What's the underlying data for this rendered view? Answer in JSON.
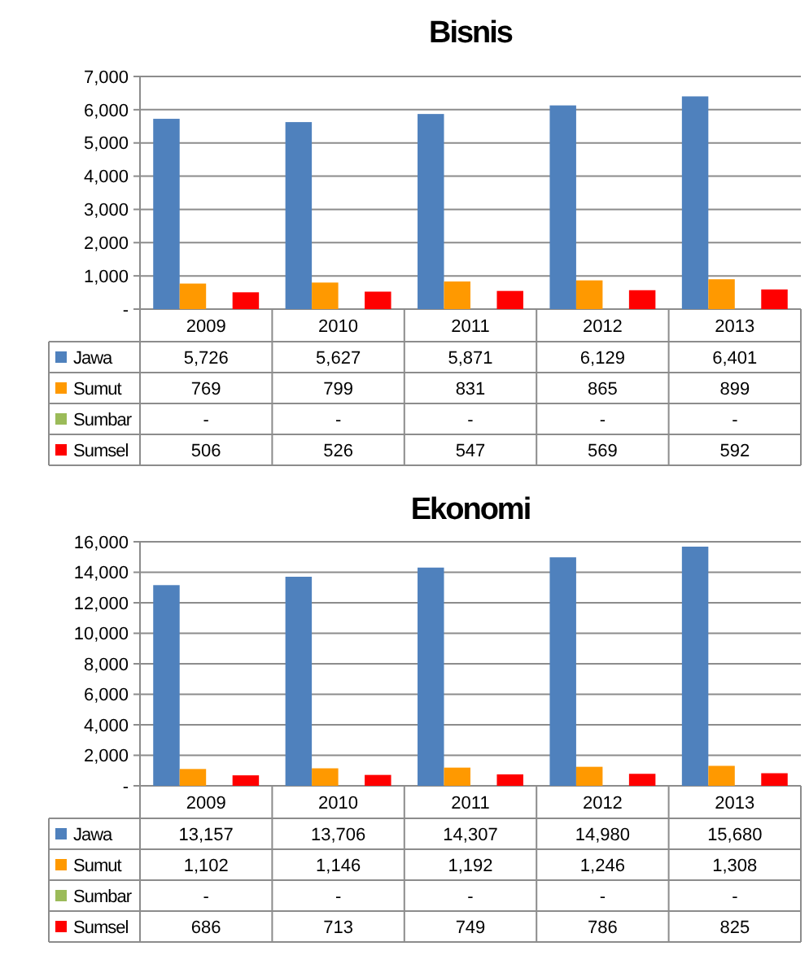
{
  "chart_data": [
    {
      "type": "bar",
      "title": "Bisnis",
      "categories": [
        "2009",
        "2010",
        "2011",
        "2012",
        "2013"
      ],
      "ylim": [
        0,
        7000
      ],
      "yticks": [
        {
          "value": 0,
          "label": "-"
        },
        {
          "value": 1000,
          "label": "1,000"
        },
        {
          "value": 2000,
          "label": "2,000"
        },
        {
          "value": 3000,
          "label": "3,000"
        },
        {
          "value": 4000,
          "label": "4,000"
        },
        {
          "value": 5000,
          "label": "5,000"
        },
        {
          "value": 6000,
          "label": "6,000"
        },
        {
          "value": 7000,
          "label": "7,000"
        }
      ],
      "grid": "y",
      "legend": "bottom",
      "series": [
        {
          "name": "Jawa",
          "color": "#4f81bd",
          "values": [
            5726,
            5627,
            5871,
            6129,
            6401
          ],
          "value_labels": [
            "5,726",
            "5,627",
            "5,871",
            "6,129",
            "6,401"
          ]
        },
        {
          "name": "Sumut",
          "color": "#ff9900",
          "values": [
            769,
            799,
            831,
            865,
            899
          ],
          "value_labels": [
            "769",
            "799",
            "831",
            "865",
            "899"
          ]
        },
        {
          "name": "Sumbar",
          "color": "#9bbb59",
          "values": [
            0,
            0,
            0,
            0,
            0
          ],
          "value_labels": [
            "-",
            "-",
            "-",
            "-",
            "-"
          ]
        },
        {
          "name": "Sumsel",
          "color": "#ff0000",
          "values": [
            506,
            526,
            547,
            569,
            592
          ],
          "value_labels": [
            "506",
            "526",
            "547",
            "569",
            "592"
          ]
        }
      ]
    },
    {
      "type": "bar",
      "title": "Ekonomi",
      "categories": [
        "2009",
        "2010",
        "2011",
        "2012",
        "2013"
      ],
      "ylim": [
        0,
        16000
      ],
      "yticks": [
        {
          "value": 0,
          "label": "-"
        },
        {
          "value": 2000,
          "label": "2,000"
        },
        {
          "value": 4000,
          "label": "4,000"
        },
        {
          "value": 6000,
          "label": "6,000"
        },
        {
          "value": 8000,
          "label": "8,000"
        },
        {
          "value": 10000,
          "label": "10,000"
        },
        {
          "value": 12000,
          "label": "12,000"
        },
        {
          "value": 14000,
          "label": "14,000"
        },
        {
          "value": 16000,
          "label": "16,000"
        }
      ],
      "grid": "y",
      "legend": "bottom",
      "series": [
        {
          "name": "Jawa",
          "color": "#4f81bd",
          "values": [
            13157,
            13706,
            14307,
            14980,
            15680
          ],
          "value_labels": [
            "13,157",
            "13,706",
            "14,307",
            "14,980",
            "15,680"
          ]
        },
        {
          "name": "Sumut",
          "color": "#ff9900",
          "values": [
            1102,
            1146,
            1192,
            1246,
            1308
          ],
          "value_labels": [
            "1,102",
            "1,146",
            "1,192",
            "1,246",
            "1,308"
          ]
        },
        {
          "name": "Sumbar",
          "color": "#9bbb59",
          "values": [
            0,
            0,
            0,
            0,
            0
          ],
          "value_labels": [
            "-",
            "-",
            "-",
            "-",
            "-"
          ]
        },
        {
          "name": "Sumsel",
          "color": "#ff0000",
          "values": [
            686,
            713,
            749,
            786,
            825
          ],
          "value_labels": [
            "686",
            "713",
            "749",
            "786",
            "825"
          ]
        }
      ]
    }
  ]
}
